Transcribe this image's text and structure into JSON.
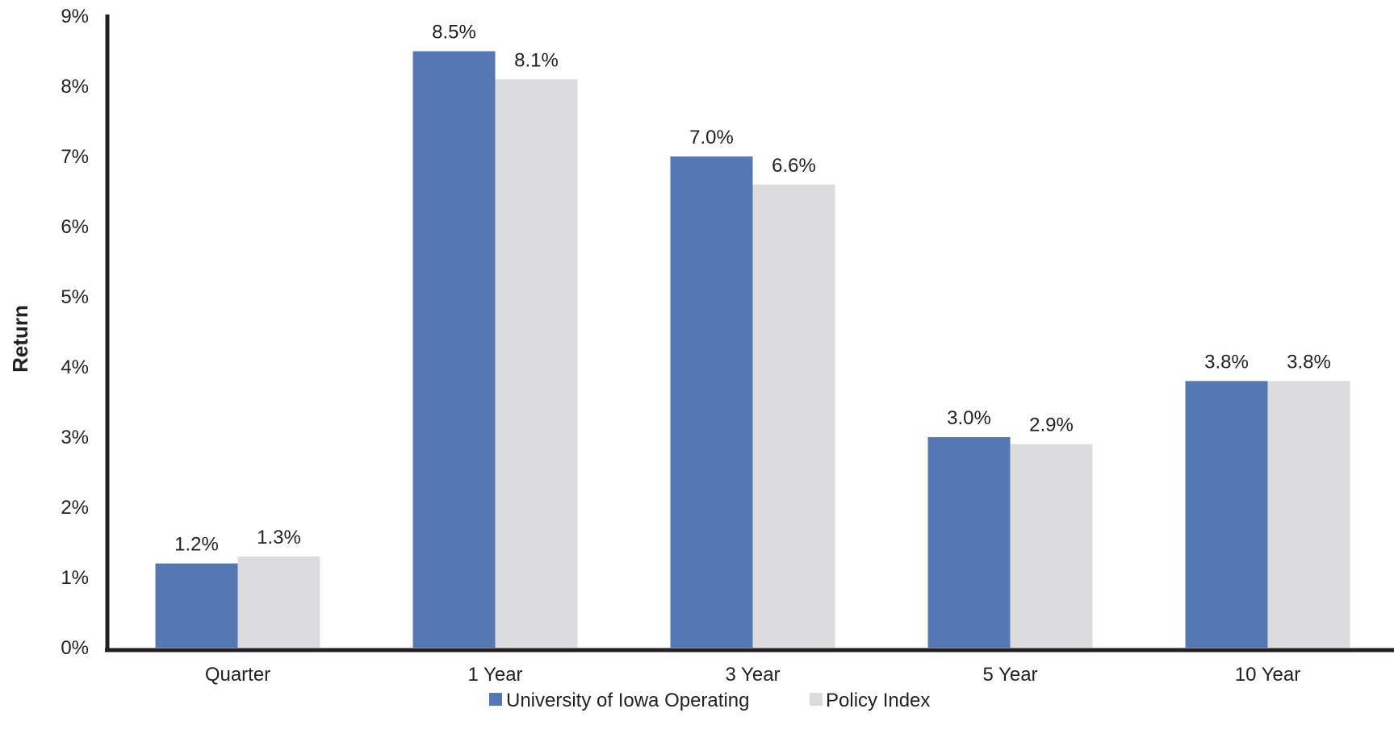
{
  "chart_data": {
    "type": "bar",
    "ylabel": "Return",
    "xlabel": "",
    "title": "",
    "ylim": [
      0,
      9
    ],
    "yticks": [
      "0%",
      "1%",
      "2%",
      "3%",
      "4%",
      "5%",
      "6%",
      "7%",
      "8%",
      "9%"
    ],
    "categories": [
      "Quarter",
      "1 Year",
      "3 Year",
      "5 Year",
      "10 Year"
    ],
    "series": [
      {
        "name": "University of Iowa Operating",
        "color": "#5577b3",
        "values": [
          1.2,
          8.5,
          7.0,
          3.0,
          3.8
        ],
        "labels": [
          "1.2%",
          "8.5%",
          "7.0%",
          "3.0%",
          "3.8%"
        ]
      },
      {
        "name": "Policy Index",
        "color": "#dcdcdf",
        "values": [
          1.3,
          8.1,
          6.6,
          2.9,
          3.8
        ],
        "labels": [
          "1.3%",
          "8.1%",
          "6.6%",
          "2.9%",
          "3.8%"
        ]
      }
    ],
    "legend": "bottom-center",
    "grid": false,
    "axis_color": "#231f20"
  }
}
